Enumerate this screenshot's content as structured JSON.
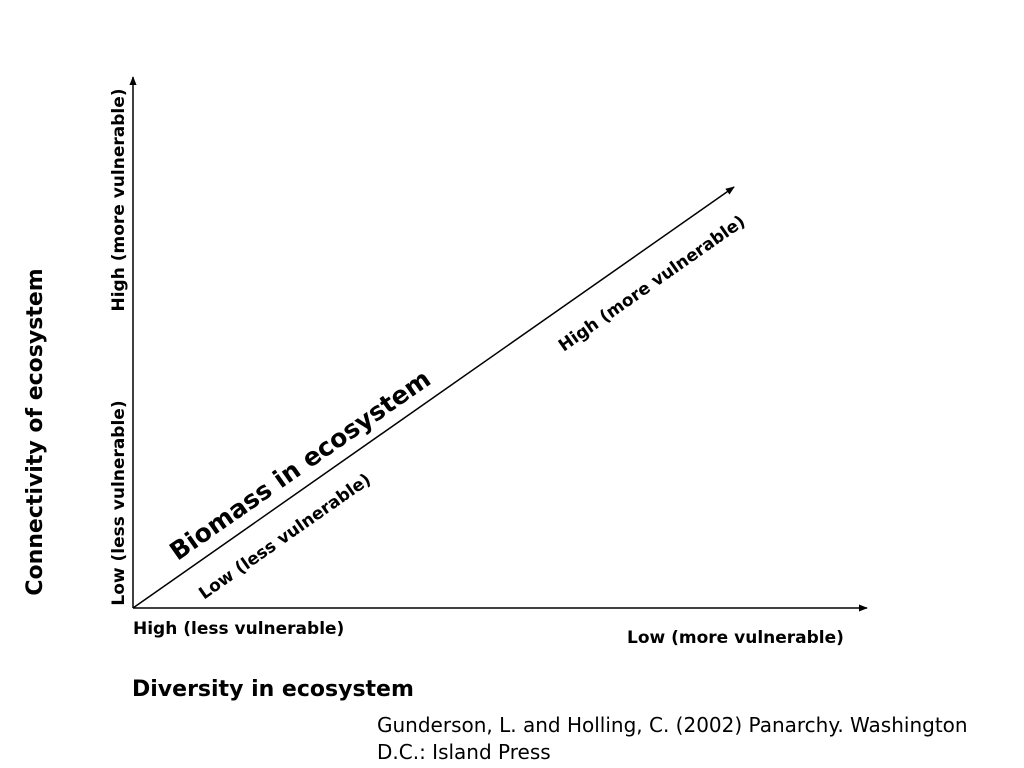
{
  "diagram": {
    "y_axis": {
      "title": "Connectivity of ecosystem",
      "high_label": "High (more vulnerable)",
      "low_label": "Low (less vulnerable)"
    },
    "x_axis": {
      "title": "Diversity in ecosystem",
      "high_label": "High (less vulnerable)",
      "low_label": "Low (more vulnerable)"
    },
    "z_axis": {
      "title": "Biomass in ecosystem",
      "low_label": "Low (less vulnerable)",
      "high_label": "High (more vulnerable)"
    }
  },
  "citation": {
    "line1": "Gunderson, L. and Holling, C. (2002) Panarchy. Washington",
    "line2": "D.C.: Island Press"
  }
}
